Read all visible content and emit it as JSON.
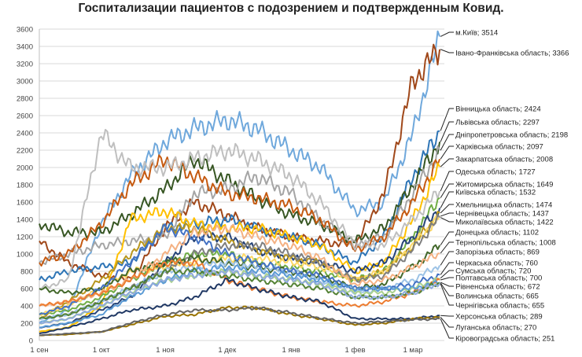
{
  "chart_data": {
    "type": "line",
    "title": "Госпитализации пациентов с подозрением и подтвержденным Ковид.",
    "xlabel": "",
    "ylabel": "",
    "ylim": [
      0,
      3600
    ],
    "yticks": [
      0,
      200,
      400,
      600,
      800,
      1000,
      1200,
      1400,
      1600,
      1800,
      2000,
      2200,
      2400,
      2600,
      2800,
      3000,
      3200,
      3400,
      3600
    ],
    "grid": true,
    "legend": "data labels at line ends, right",
    "x_tick_labels": [
      "1 сен",
      "1 окт",
      "1 ноя",
      "1 дек",
      "1 янв",
      "1 фев",
      "1 мар"
    ],
    "x": [
      "09-01",
      "09-15",
      "10-01",
      "10-15",
      "11-01",
      "11-15",
      "12-01",
      "12-15",
      "01-01",
      "01-15",
      "02-01",
      "02-15",
      "03-01",
      "03-14"
    ],
    "series": [
      {
        "name": "м.Київ",
        "last": "3514",
        "color": "#6fa8dc",
        "values": [
          200,
          350,
          1350,
          1900,
          2300,
          2450,
          2550,
          2450,
          2200,
          2000,
          1500,
          1600,
          2400,
          3514
        ]
      },
      {
        "name": "Івано-Франківська область",
        "last": "3366",
        "color": "#a0481a",
        "values": [
          1150,
          900,
          750,
          700,
          1300,
          1600,
          1450,
          1300,
          1200,
          1150,
          1100,
          1700,
          3000,
          3366
        ]
      },
      {
        "name": "Вінницька область",
        "last": "2424",
        "color": "#2e75b6",
        "values": [
          700,
          800,
          850,
          900,
          1300,
          1350,
          1400,
          1300,
          1200,
          1100,
          900,
          1200,
          1900,
          2424
        ]
      },
      {
        "name": "Львівська область",
        "last": "2297",
        "color": "#375623",
        "values": [
          1350,
          1250,
          1250,
          1450,
          1750,
          2100,
          1850,
          1650,
          1450,
          1350,
          1150,
          1300,
          1800,
          2297
        ]
      },
      {
        "name": "Дніпропетровська область",
        "last": "2198",
        "color": "#a5a5a5",
        "values": [
          900,
          1000,
          1100,
          1150,
          1200,
          1700,
          1750,
          1900,
          1700,
          1400,
          1100,
          1200,
          1700,
          2198
        ]
      },
      {
        "name": "Харківська область",
        "last": "2097",
        "color": "#c55a11",
        "values": [
          900,
          1000,
          1350,
          1800,
          2100,
          1900,
          1700,
          1650,
          1550,
          1400,
          1050,
          1200,
          1600,
          2097
        ]
      },
      {
        "name": "Закарпатська область",
        "last": "2008",
        "color": "#ffc000",
        "values": [
          100,
          150,
          400,
          1400,
          1500,
          1350,
          1300,
          1300,
          1200,
          1100,
          800,
          900,
          1400,
          2008
        ]
      },
      {
        "name": "Одеська область",
        "last": "1727",
        "color": "#bfbfbf",
        "values": [
          600,
          700,
          2400,
          2000,
          2000,
          2100,
          2200,
          2100,
          1900,
          1600,
          1100,
          1100,
          1400,
          1727
        ]
      },
      {
        "name": "Житомирська область",
        "last": "1649",
        "color": "#70ad47",
        "values": [
          300,
          350,
          500,
          700,
          900,
          1000,
          1000,
          900,
          850,
          800,
          700,
          800,
          1200,
          1649
        ]
      },
      {
        "name": "Київська область",
        "last": "1532",
        "color": "#264478",
        "values": [
          150,
          200,
          350,
          500,
          900,
          1200,
          1200,
          1050,
          950,
          900,
          800,
          900,
          1200,
          1532
        ]
      },
      {
        "name": "Хмельницька область",
        "last": "1474",
        "color": "#b8961e",
        "values": [
          250,
          450,
          700,
          1000,
          1300,
          1300,
          1150,
          1050,
          950,
          900,
          700,
          800,
          1100,
          1474
        ]
      },
      {
        "name": "Чернівецька область",
        "last": "1437",
        "color": "#ffd966",
        "values": [
          300,
          400,
          600,
          800,
          850,
          900,
          950,
          950,
          900,
          850,
          700,
          800,
          1100,
          1437
        ]
      },
      {
        "name": "Миколаївська область",
        "last": "1422",
        "color": "#7f7f7f",
        "values": [
          250,
          300,
          450,
          600,
          800,
          1000,
          1100,
          1100,
          1000,
          900,
          700,
          750,
          1050,
          1422
        ]
      },
      {
        "name": "Донецька область",
        "last": "1102",
        "color": "#43682b",
        "values": [
          600,
          550,
          600,
          800,
          900,
          950,
          900,
          850,
          800,
          750,
          600,
          650,
          850,
          1102
        ]
      },
      {
        "name": "Тернопільська область",
        "last": "1008",
        "color": "#f4b183",
        "values": [
          400,
          450,
          550,
          700,
          1000,
          1250,
          1300,
          1200,
          1100,
          950,
          650,
          700,
          850,
          1008
        ]
      },
      {
        "name": "Запорізька область",
        "last": "869",
        "color": "#9dc3e6",
        "values": [
          250,
          300,
          450,
          600,
          800,
          850,
          900,
          850,
          800,
          700,
          550,
          600,
          700,
          869
        ]
      },
      {
        "name": "Черкаська область",
        "last": "760",
        "color": "#4472c4",
        "values": [
          300,
          400,
          600,
          900,
          1300,
          1200,
          1000,
          900,
          800,
          750,
          600,
          600,
          650,
          760
        ]
      },
      {
        "name": "Сумська область",
        "last": "720",
        "color": "#a9d18e",
        "values": [
          200,
          250,
          400,
          550,
          700,
          750,
          800,
          750,
          700,
          650,
          550,
          550,
          600,
          720
        ]
      },
      {
        "name": "Полтавська область",
        "last": "700",
        "color": "#ed7d31",
        "values": [
          400,
          450,
          550,
          700,
          900,
          900,
          700,
          600,
          500,
          450,
          400,
          450,
          550,
          700
        ]
      },
      {
        "name": "Рівненська область",
        "last": "672",
        "color": "#5b9bd5",
        "values": [
          150,
          200,
          300,
          500,
          700,
          800,
          850,
          800,
          750,
          700,
          600,
          600,
          600,
          672
        ]
      },
      {
        "name": "Волинська область",
        "last": "665",
        "color": "#548235",
        "values": [
          250,
          300,
          450,
          600,
          800,
          800,
          750,
          700,
          650,
          600,
          500,
          500,
          550,
          665
        ]
      },
      {
        "name": "Чернігівська область",
        "last": "655",
        "color": "#8faadc",
        "values": [
          200,
          250,
          400,
          550,
          700,
          750,
          800,
          750,
          700,
          650,
          500,
          500,
          550,
          655
        ]
      },
      {
        "name": "Херсонська область",
        "last": "289",
        "color": "#203864",
        "values": [
          80,
          150,
          250,
          350,
          400,
          500,
          700,
          600,
          500,
          450,
          250,
          250,
          250,
          289
        ]
      },
      {
        "name": "Луганська область",
        "last": "270",
        "color": "#997300",
        "values": [
          60,
          70,
          100,
          180,
          280,
          300,
          380,
          380,
          300,
          250,
          180,
          200,
          250,
          270
        ]
      },
      {
        "name": "Кіровоградська область",
        "last": "251",
        "color": "#636363",
        "values": [
          60,
          80,
          100,
          200,
          300,
          350,
          350,
          380,
          320,
          260,
          200,
          220,
          240,
          251
        ]
      }
    ]
  }
}
